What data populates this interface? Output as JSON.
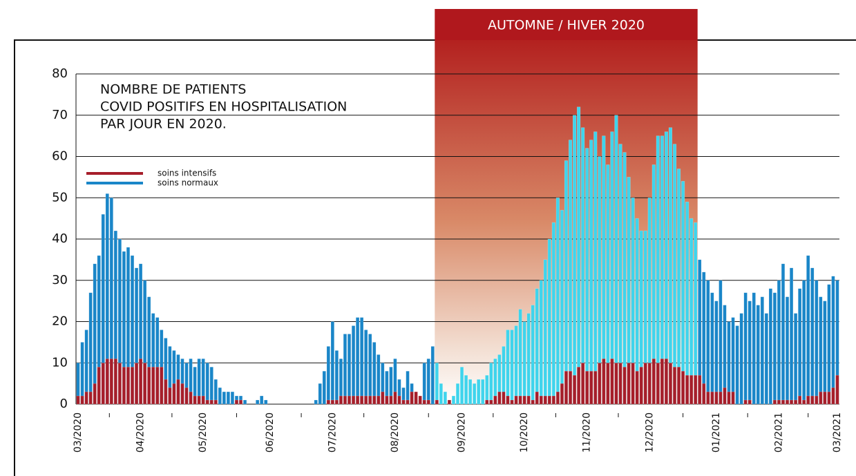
{
  "chart_data": {
    "type": "bar",
    "title": [
      "NOMBRE DE PATIENTS",
      "COVID POSITIFS EN HOSPITALISATION",
      "PAR JOUR EN 2020."
    ],
    "highlight": {
      "label": "AUTOMNE / HIVER 2020",
      "from": 86,
      "to": 148,
      "color": "#b0181d",
      "bar_color": "#3fd4ec"
    },
    "categories": [
      "03/2020",
      null,
      null,
      null,
      null,
      null,
      null,
      null,
      null,
      null,
      null,
      null,
      null,
      null,
      null,
      "04/2020",
      null,
      null,
      null,
      null,
      null,
      null,
      null,
      null,
      null,
      null,
      null,
      null,
      null,
      null,
      "05/2020",
      null,
      null,
      null,
      null,
      null,
      null,
      null,
      null,
      null,
      null,
      null,
      null,
      null,
      null,
      null,
      "06/2020",
      null,
      null,
      null,
      null,
      null,
      null,
      null,
      null,
      null,
      null,
      null,
      null,
      null,
      null,
      "07/2020",
      null,
      null,
      null,
      null,
      null,
      null,
      null,
      null,
      null,
      null,
      null,
      null,
      null,
      null,
      "08/2020",
      null,
      null,
      null,
      null,
      null,
      null,
      null,
      null,
      null,
      null,
      null,
      null,
      null,
      null,
      null,
      "09/2020",
      null,
      null,
      null,
      null,
      null,
      null,
      null,
      null,
      null,
      null,
      null,
      null,
      null,
      null,
      "10/2020",
      null,
      null,
      null,
      null,
      null,
      null,
      null,
      null,
      null,
      null,
      null,
      null,
      null,
      null,
      "11/2020",
      null,
      null,
      null,
      null,
      null,
      null,
      null,
      null,
      null,
      null,
      null,
      null,
      null,
      null,
      "12/2020",
      null,
      null,
      null,
      null,
      null,
      null,
      null,
      null,
      null,
      null,
      null,
      null,
      null,
      null,
      null,
      "01/2021",
      null,
      null,
      null,
      null,
      null,
      null,
      null,
      null,
      null,
      null,
      null,
      null,
      null,
      null,
      "02/2021",
      null,
      null,
      null,
      null,
      null,
      null,
      null,
      null,
      null,
      null,
      null,
      null,
      null,
      "03/2021"
    ],
    "series": [
      {
        "name": "soins normaux",
        "color": "#1a86c8",
        "values": [
          10,
          15,
          18,
          27,
          34,
          36,
          46,
          51,
          50,
          42,
          40,
          37,
          38,
          36,
          33,
          34,
          30,
          26,
          22,
          21,
          18,
          16,
          14,
          13,
          12,
          11,
          10,
          11,
          9,
          11,
          11,
          10,
          9,
          6,
          4,
          3,
          3,
          3,
          2,
          2,
          1,
          0,
          0,
          1,
          2,
          1,
          0,
          0,
          0,
          0,
          0,
          0,
          0,
          0,
          0,
          0,
          0,
          1,
          5,
          8,
          14,
          20,
          13,
          11,
          17,
          17,
          19,
          21,
          21,
          18,
          17,
          15,
          12,
          10,
          8,
          9,
          11,
          6,
          4,
          8,
          5,
          2,
          1,
          10,
          11,
          14,
          10,
          5,
          3,
          1,
          2,
          5,
          9,
          7,
          6,
          5,
          6,
          6,
          7,
          10,
          11,
          12,
          14,
          18,
          18,
          19,
          23,
          20,
          22,
          24,
          28,
          30,
          35,
          40,
          44,
          50,
          47,
          59,
          64,
          70,
          72,
          67,
          62,
          64,
          66,
          60,
          65,
          58,
          66,
          70,
          63,
          61,
          55,
          50,
          45,
          42,
          42,
          50,
          58,
          65,
          65,
          66,
          67,
          63,
          57,
          54,
          49,
          45,
          44,
          35,
          32,
          30,
          27,
          25,
          30,
          24,
          20,
          21,
          19,
          22,
          27,
          25,
          27,
          24,
          26,
          22,
          28,
          27,
          30,
          34,
          26,
          33,
          22,
          28,
          30,
          36,
          33,
          30,
          26,
          25,
          29,
          31,
          30
        ]
      },
      {
        "name": "soins intensifs",
        "color": "#a61e2a",
        "values": [
          2,
          2,
          3,
          3,
          5,
          9,
          10,
          11,
          11,
          11,
          10,
          9,
          9,
          9,
          10,
          11,
          10,
          9,
          9,
          9,
          9,
          6,
          4,
          5,
          6,
          5,
          4,
          3,
          2,
          2,
          2,
          1,
          1,
          1,
          0,
          0,
          0,
          0,
          1,
          1,
          0,
          0,
          0,
          0,
          0,
          0,
          0,
          0,
          0,
          0,
          0,
          0,
          0,
          0,
          0,
          0,
          0,
          0,
          0,
          0,
          1,
          1,
          1,
          2,
          2,
          2,
          2,
          2,
          2,
          2,
          2,
          2,
          2,
          3,
          2,
          2,
          3,
          2,
          1,
          1,
          3,
          3,
          2,
          1,
          1,
          0,
          1,
          0,
          0,
          1,
          0,
          0,
          0,
          0,
          0,
          0,
          0,
          0,
          1,
          1,
          2,
          3,
          3,
          2,
          1,
          2,
          2,
          2,
          2,
          1,
          3,
          2,
          2,
          2,
          2,
          3,
          5,
          8,
          8,
          7,
          9,
          10,
          8,
          8,
          8,
          10,
          11,
          10,
          11,
          10,
          10,
          9,
          10,
          10,
          8,
          9,
          10,
          10,
          11,
          10,
          11,
          11,
          10,
          9,
          9,
          8,
          7,
          7,
          7,
          7,
          5,
          3,
          3,
          3,
          3,
          4,
          3,
          3,
          0,
          0,
          1,
          1,
          0,
          0,
          0,
          0,
          0,
          1,
          1,
          1,
          1,
          1,
          1,
          2,
          1,
          2,
          2,
          2,
          3,
          3,
          3,
          4,
          7
        ]
      }
    ],
    "ylim": [
      0,
      80
    ],
    "yticks": [
      0,
      10,
      20,
      30,
      40,
      50,
      60,
      70,
      80
    ],
    "grid": true
  }
}
